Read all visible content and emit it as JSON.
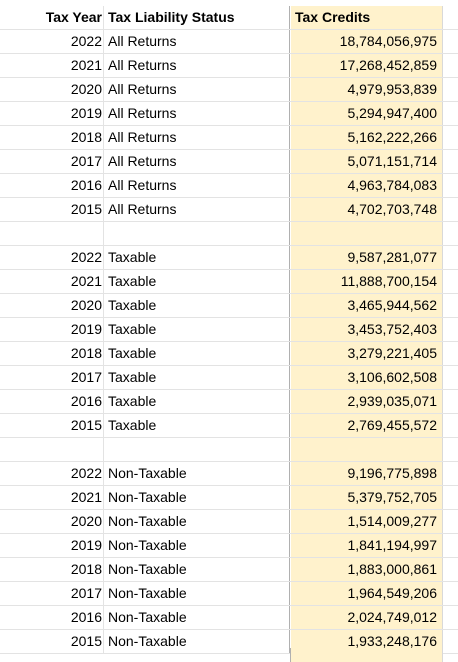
{
  "headers": {
    "year": "Tax Year",
    "status": "Tax Liability Status",
    "credits": "Tax Credits"
  },
  "rows": [
    {
      "year": "2022",
      "status": "All Returns",
      "credits": "18,784,056,975"
    },
    {
      "year": "2021",
      "status": "All Returns",
      "credits": "17,268,452,859"
    },
    {
      "year": "2020",
      "status": "All Returns",
      "credits": "4,979,953,839"
    },
    {
      "year": "2019",
      "status": "All Returns",
      "credits": "5,294,947,400"
    },
    {
      "year": "2018",
      "status": "All Returns",
      "credits": "5,162,222,266"
    },
    {
      "year": "2017",
      "status": "All Returns",
      "credits": "5,071,151,714"
    },
    {
      "year": "2016",
      "status": "All Returns",
      "credits": "4,963,784,083"
    },
    {
      "year": "2015",
      "status": "All Returns",
      "credits": "4,702,703,748"
    },
    {
      "year": "",
      "status": "",
      "credits": ""
    },
    {
      "year": "2022",
      "status": "Taxable",
      "credits": "9,587,281,077"
    },
    {
      "year": "2021",
      "status": "Taxable",
      "credits": "11,888,700,154"
    },
    {
      "year": "2020",
      "status": "Taxable",
      "credits": "3,465,944,562"
    },
    {
      "year": "2019",
      "status": "Taxable",
      "credits": "3,453,752,403"
    },
    {
      "year": "2018",
      "status": "Taxable",
      "credits": "3,279,221,405"
    },
    {
      "year": "2017",
      "status": "Taxable",
      "credits": "3,106,602,508"
    },
    {
      "year": "2016",
      "status": "Taxable",
      "credits": "2,939,035,071"
    },
    {
      "year": "2015",
      "status": "Taxable",
      "credits": "2,769,455,572"
    },
    {
      "year": "",
      "status": "",
      "credits": ""
    },
    {
      "year": "2022",
      "status": "Non-Taxable",
      "credits": "9,196,775,898"
    },
    {
      "year": "2021",
      "status": "Non-Taxable",
      "credits": "5,379,752,705"
    },
    {
      "year": "2020",
      "status": "Non-Taxable",
      "credits": "1,514,009,277"
    },
    {
      "year": "2019",
      "status": "Non-Taxable",
      "credits": "1,841,194,997"
    },
    {
      "year": "2018",
      "status": "Non-Taxable",
      "credits": "1,883,000,861"
    },
    {
      "year": "2017",
      "status": "Non-Taxable",
      "credits": "1,964,549,206"
    },
    {
      "year": "2016",
      "status": "Non-Taxable",
      "credits": "2,024,749,012"
    },
    {
      "year": "2015",
      "status": "Non-Taxable",
      "credits": "1,933,248,176"
    }
  ],
  "colors": {
    "credits_fill": "#fff2cc",
    "gridline": "#e3e3e3"
  }
}
